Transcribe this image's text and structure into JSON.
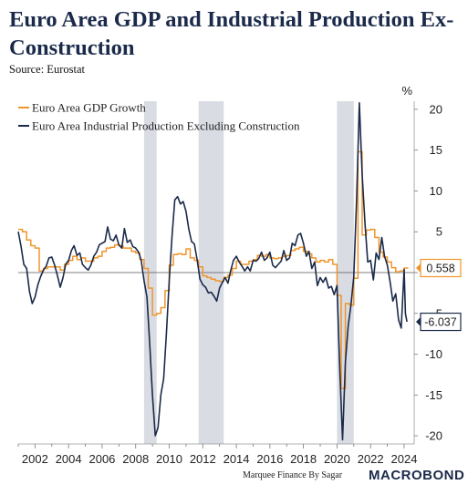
{
  "title": "Euro Area GDP and Industrial Production Ex-Construction",
  "source": "Source: Eurostat",
  "footer": {
    "credit": "Marquee Finance By Sagar",
    "brand": "MACROBOND"
  },
  "colors": {
    "gdp": "#f0952b",
    "ip": "#1b2a4a",
    "recession": "#d9dce3",
    "zero_line": "#555555",
    "axis_text": "#222222"
  },
  "chart_data": {
    "type": "line",
    "title": "Euro Area GDP and Industrial Production Ex-Construction",
    "ylabel": "%",
    "xlabel": "",
    "ylim": [
      -21,
      21
    ],
    "xlim": [
      2001.0,
      2024.6
    ],
    "yticks": [
      -20,
      -15,
      -10,
      -5,
      0,
      5,
      10,
      15,
      20
    ],
    "xticks": [
      2002,
      2004,
      2006,
      2008,
      2010,
      2012,
      2014,
      2016,
      2018,
      2020,
      2022,
      2024
    ],
    "grid": false,
    "legend_position": "top-left",
    "recession_bands": [
      [
        2008.5,
        2009.25
      ],
      [
        2011.75,
        2013.25
      ],
      [
        2020.0,
        2021.0
      ]
    ],
    "series": [
      {
        "name": "Euro Area GDP Growth",
        "step": true,
        "last_label": "0.558",
        "points": [
          [
            2001.0,
            5.3
          ],
          [
            2001.25,
            5.0
          ],
          [
            2001.5,
            4.0
          ],
          [
            2001.75,
            3.3
          ],
          [
            2002.0,
            3.0
          ],
          [
            2002.25,
            0.2
          ],
          [
            2002.5,
            0.5
          ],
          [
            2002.75,
            0.7
          ],
          [
            2003.0,
            0.7
          ],
          [
            2003.25,
            0.7
          ],
          [
            2003.5,
            0.3
          ],
          [
            2003.75,
            1.0
          ],
          [
            2004.0,
            1.5
          ],
          [
            2004.25,
            2.0
          ],
          [
            2004.5,
            1.6
          ],
          [
            2004.75,
            1.8
          ],
          [
            2005.0,
            1.4
          ],
          [
            2005.25,
            1.4
          ],
          [
            2005.5,
            1.8
          ],
          [
            2005.75,
            2.0
          ],
          [
            2006.0,
            2.6
          ],
          [
            2006.25,
            3.0
          ],
          [
            2006.5,
            3.1
          ],
          [
            2006.75,
            3.4
          ],
          [
            2007.0,
            3.3
          ],
          [
            2007.25,
            3.0
          ],
          [
            2007.5,
            3.0
          ],
          [
            2007.75,
            2.6
          ],
          [
            2008.0,
            2.4
          ],
          [
            2008.25,
            1.6
          ],
          [
            2008.5,
            0.5
          ],
          [
            2008.75,
            -1.9
          ],
          [
            2009.0,
            -5.2
          ],
          [
            2009.25,
            -5.0
          ],
          [
            2009.5,
            -4.3
          ],
          [
            2009.75,
            -2.2
          ],
          [
            2010.0,
            0.9
          ],
          [
            2010.25,
            2.2
          ],
          [
            2010.5,
            2.3
          ],
          [
            2010.75,
            2.2
          ],
          [
            2011.0,
            2.9
          ],
          [
            2011.25,
            1.8
          ],
          [
            2011.5,
            1.5
          ],
          [
            2011.75,
            0.7
          ],
          [
            2012.0,
            -0.4
          ],
          [
            2012.25,
            -0.6
          ],
          [
            2012.5,
            -0.8
          ],
          [
            2012.75,
            -1.0
          ],
          [
            2013.0,
            -1.1
          ],
          [
            2013.25,
            -0.6
          ],
          [
            2013.5,
            -0.3
          ],
          [
            2013.75,
            0.5
          ],
          [
            2014.0,
            1.4
          ],
          [
            2014.25,
            1.0
          ],
          [
            2014.5,
            1.0
          ],
          [
            2014.75,
            1.4
          ],
          [
            2015.0,
            1.6
          ],
          [
            2015.25,
            2.1
          ],
          [
            2015.5,
            2.0
          ],
          [
            2015.75,
            2.2
          ],
          [
            2016.0,
            1.8
          ],
          [
            2016.25,
            1.7
          ],
          [
            2016.5,
            1.8
          ],
          [
            2016.75,
            2.0
          ],
          [
            2017.0,
            2.1
          ],
          [
            2017.25,
            2.7
          ],
          [
            2017.5,
            2.9
          ],
          [
            2017.75,
            3.1
          ],
          [
            2018.0,
            2.6
          ],
          [
            2018.25,
            2.3
          ],
          [
            2018.5,
            1.8
          ],
          [
            2018.75,
            1.3
          ],
          [
            2019.0,
            1.5
          ],
          [
            2019.25,
            1.3
          ],
          [
            2019.5,
            1.6
          ],
          [
            2019.75,
            1.0
          ],
          [
            2020.0,
            -2.8
          ],
          [
            2020.25,
            -14.2
          ],
          [
            2020.5,
            -3.8
          ],
          [
            2020.75,
            -4.0
          ],
          [
            2021.0,
            -0.7
          ],
          [
            2021.25,
            14.8
          ],
          [
            2021.5,
            4.6
          ],
          [
            2021.75,
            5.2
          ],
          [
            2022.0,
            5.3
          ],
          [
            2022.25,
            4.3
          ],
          [
            2022.5,
            2.5
          ],
          [
            2022.75,
            1.9
          ],
          [
            2023.0,
            1.3
          ],
          [
            2023.25,
            0.6
          ],
          [
            2023.5,
            0.1
          ],
          [
            2023.75,
            0.2
          ],
          [
            2024.0,
            0.558
          ]
        ]
      },
      {
        "name": "Euro Area Industrial Production Excluding Construction",
        "step": false,
        "last_label": "-6.037",
        "points": [
          [
            2001.0,
            5.0
          ],
          [
            2001.17,
            3.2
          ],
          [
            2001.33,
            1.0
          ],
          [
            2001.5,
            0.5
          ],
          [
            2001.67,
            -2.3
          ],
          [
            2001.83,
            -3.8
          ],
          [
            2002.0,
            -3.0
          ],
          [
            2002.17,
            -1.5
          ],
          [
            2002.33,
            -0.5
          ],
          [
            2002.5,
            0.3
          ],
          [
            2002.67,
            0.8
          ],
          [
            2002.83,
            1.8
          ],
          [
            2003.0,
            1.9
          ],
          [
            2003.17,
            0.9
          ],
          [
            2003.33,
            -0.3
          ],
          [
            2003.5,
            -1.8
          ],
          [
            2003.67,
            -0.6
          ],
          [
            2003.83,
            1.0
          ],
          [
            2004.0,
            1.5
          ],
          [
            2004.17,
            2.7
          ],
          [
            2004.33,
            3.3
          ],
          [
            2004.5,
            2.1
          ],
          [
            2004.67,
            2.4
          ],
          [
            2004.83,
            1.0
          ],
          [
            2005.0,
            0.6
          ],
          [
            2005.17,
            0.3
          ],
          [
            2005.33,
            0.9
          ],
          [
            2005.5,
            2.0
          ],
          [
            2005.67,
            2.5
          ],
          [
            2005.83,
            3.4
          ],
          [
            2006.0,
            3.6
          ],
          [
            2006.17,
            3.8
          ],
          [
            2006.33,
            5.6
          ],
          [
            2006.5,
            4.1
          ],
          [
            2006.67,
            3.9
          ],
          [
            2006.83,
            4.6
          ],
          [
            2007.0,
            3.4
          ],
          [
            2007.17,
            3.0
          ],
          [
            2007.33,
            5.4
          ],
          [
            2007.5,
            3.7
          ],
          [
            2007.67,
            4.0
          ],
          [
            2007.83,
            3.2
          ],
          [
            2008.0,
            3.0
          ],
          [
            2008.17,
            2.5
          ],
          [
            2008.33,
            1.5
          ],
          [
            2008.5,
            -1.0
          ],
          [
            2008.67,
            -3.0
          ],
          [
            2008.83,
            -8.5
          ],
          [
            2009.0,
            -15.0
          ],
          [
            2009.17,
            -20.0
          ],
          [
            2009.33,
            -19.0
          ],
          [
            2009.5,
            -15.0
          ],
          [
            2009.67,
            -13.0
          ],
          [
            2009.83,
            -7.5
          ],
          [
            2010.0,
            -1.0
          ],
          [
            2010.17,
            4.5
          ],
          [
            2010.33,
            8.9
          ],
          [
            2010.5,
            9.3
          ],
          [
            2010.67,
            8.4
          ],
          [
            2010.83,
            8.7
          ],
          [
            2011.0,
            7.5
          ],
          [
            2011.17,
            5.3
          ],
          [
            2011.33,
            3.8
          ],
          [
            2011.5,
            3.5
          ],
          [
            2011.67,
            1.5
          ],
          [
            2011.83,
            -0.8
          ],
          [
            2012.0,
            -1.5
          ],
          [
            2012.17,
            -1.8
          ],
          [
            2012.33,
            -2.5
          ],
          [
            2012.5,
            -2.4
          ],
          [
            2012.67,
            -2.9
          ],
          [
            2012.83,
            -3.5
          ],
          [
            2013.0,
            -1.9
          ],
          [
            2013.17,
            -1.2
          ],
          [
            2013.33,
            -0.6
          ],
          [
            2013.5,
            -1.3
          ],
          [
            2013.67,
            0.3
          ],
          [
            2013.83,
            1.5
          ],
          [
            2014.0,
            2.0
          ],
          [
            2014.17,
            1.3
          ],
          [
            2014.33,
            0.8
          ],
          [
            2014.5,
            0.2
          ],
          [
            2014.67,
            0.7
          ],
          [
            2014.83,
            0.2
          ],
          [
            2015.0,
            1.5
          ],
          [
            2015.17,
            1.4
          ],
          [
            2015.33,
            1.7
          ],
          [
            2015.5,
            2.5
          ],
          [
            2015.67,
            1.5
          ],
          [
            2015.83,
            1.8
          ],
          [
            2016.0,
            2.5
          ],
          [
            2016.17,
            0.9
          ],
          [
            2016.33,
            0.6
          ],
          [
            2016.5,
            1.0
          ],
          [
            2016.67,
            1.4
          ],
          [
            2016.83,
            2.7
          ],
          [
            2017.0,
            1.5
          ],
          [
            2017.17,
            1.8
          ],
          [
            2017.33,
            3.6
          ],
          [
            2017.5,
            3.3
          ],
          [
            2017.67,
            4.6
          ],
          [
            2017.83,
            4.8
          ],
          [
            2018.0,
            3.6
          ],
          [
            2018.17,
            2.0
          ],
          [
            2018.33,
            2.6
          ],
          [
            2018.5,
            0.5
          ],
          [
            2018.67,
            1.3
          ],
          [
            2018.83,
            -1.6
          ],
          [
            2019.0,
            -0.6
          ],
          [
            2019.17,
            -1.2
          ],
          [
            2019.33,
            -0.6
          ],
          [
            2019.5,
            -1.9
          ],
          [
            2019.67,
            -1.7
          ],
          [
            2019.83,
            -2.7
          ],
          [
            2020.0,
            -1.6
          ],
          [
            2020.17,
            -12.0
          ],
          [
            2020.33,
            -20.5
          ],
          [
            2020.5,
            -11.0
          ],
          [
            2020.67,
            -6.5
          ],
          [
            2020.83,
            -4.0
          ],
          [
            2021.0,
            -0.5
          ],
          [
            2021.17,
            9.0
          ],
          [
            2021.33,
            20.8
          ],
          [
            2021.5,
            12.0
          ],
          [
            2021.67,
            6.0
          ],
          [
            2021.83,
            1.3
          ],
          [
            2022.0,
            1.5
          ],
          [
            2022.17,
            -0.9
          ],
          [
            2022.33,
            2.4
          ],
          [
            2022.5,
            1.6
          ],
          [
            2022.67,
            4.3
          ],
          [
            2022.83,
            2.0
          ],
          [
            2023.0,
            0.9
          ],
          [
            2023.17,
            -1.2
          ],
          [
            2023.33,
            -3.5
          ],
          [
            2023.5,
            -2.6
          ],
          [
            2023.67,
            -5.8
          ],
          [
            2023.83,
            -6.8
          ],
          [
            2024.0,
            0.4
          ],
          [
            2024.08,
            -5.0
          ],
          [
            2024.17,
            -6.037
          ]
        ]
      }
    ]
  }
}
